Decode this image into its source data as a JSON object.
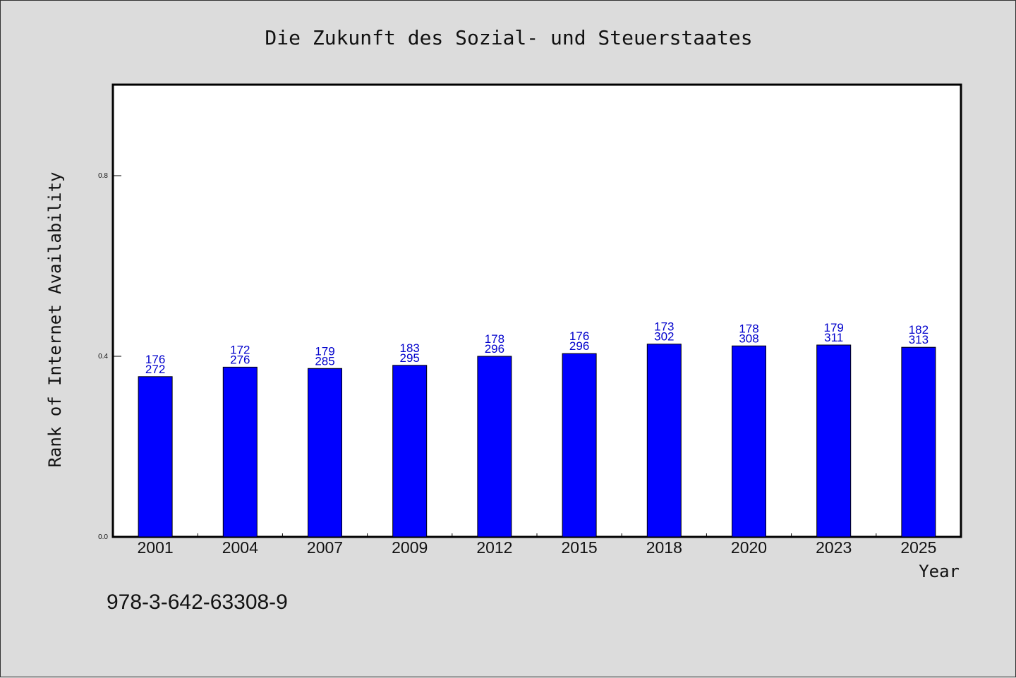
{
  "chart_data": {
    "type": "bar",
    "title": "Die Zukunft des Sozial- und Steuerstaates",
    "xlabel": "Year",
    "ylabel": "Rank of Internet Availability",
    "categories": [
      "2001",
      "2004",
      "2007",
      "2009",
      "2012",
      "2015",
      "2018",
      "2020",
      "2023",
      "2025"
    ],
    "values": [
      0.355,
      0.376,
      0.373,
      0.38,
      0.4,
      0.406,
      0.427,
      0.423,
      0.425,
      0.42
    ],
    "labels_top": [
      "176",
      "172",
      "179",
      "183",
      "178",
      "176",
      "173",
      "178",
      "179",
      "182"
    ],
    "labels_bottom": [
      "272",
      "276",
      "285",
      "295",
      "296",
      "296",
      "302",
      "308",
      "311",
      "313"
    ],
    "ylim": [
      0,
      1.0
    ],
    "yticks": [
      0.0,
      0.4,
      0.8
    ],
    "ytick_labels": [
      "0.0",
      "0.4",
      "0.8"
    ],
    "grid": false,
    "bar_color": "#0000ff",
    "label_color": "#0000cc"
  },
  "footnote": "978-3-642-63308-9"
}
